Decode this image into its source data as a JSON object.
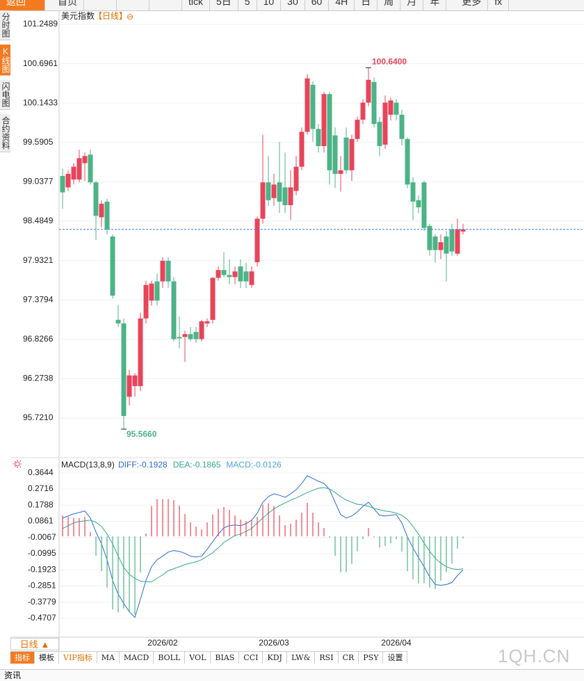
{
  "toolbar": {
    "back": "返回",
    "home": "首页",
    "items": [
      "tick",
      "5日",
      "5",
      "10",
      "30",
      "60",
      "4H",
      "日",
      "周",
      "月",
      "年"
    ],
    "more": "更多",
    "fx": "fx"
  },
  "side_tabs": [
    "分时图",
    "K线图",
    "闪电图",
    "合约资料"
  ],
  "chart_data": [
    {
      "type": "candlestick",
      "title": "美元指数",
      "period": "【日线】",
      "toggle": "⊖",
      "up_color": "#e8445a",
      "down_color": "#4cb387",
      "grid": true,
      "high_label": "100.6400",
      "low_label": "95.5660",
      "categories": [
        null,
        null,
        null,
        null,
        null,
        null,
        null,
        null,
        null,
        null,
        null,
        null,
        null,
        null,
        null,
        null,
        null,
        null,
        "2026/02",
        null,
        null,
        null,
        null,
        null,
        null,
        null,
        null,
        null,
        null,
        null,
        null,
        null,
        null,
        null,
        null,
        null,
        null,
        null,
        "2026/03",
        null,
        null,
        null,
        null,
        null,
        null,
        null,
        null,
        null,
        null,
        null,
        null,
        null,
        null,
        null,
        null,
        null,
        null,
        null,
        null,
        null,
        "2026/04",
        null,
        null,
        null,
        null,
        null,
        null,
        null,
        null,
        null,
        null,
        null,
        null
      ],
      "open": [
        99.12,
        98.96,
        99.07,
        99.07,
        99.3,
        99.42,
        99.03,
        98.54,
        98.76,
        98.27,
        97.1,
        97.05,
        96.02,
        96.17,
        96.17,
        97.12,
        97.37,
        97.64,
        97.64,
        97.93,
        97.64,
        96.86,
        96.86,
        96.9,
        96.93,
        96.83,
        97.05,
        97.1,
        97.69,
        97.8,
        97.73,
        97.7,
        97.85,
        97.78,
        97.59,
        97.91,
        98.52,
        99.03,
        98.81,
        99.03,
        98.96,
        98.71,
        98.91,
        99.25,
        99.74,
        100.4,
        99.78,
        99.54,
        100.27,
        99.69,
        99.15,
        99.66,
        99.2,
        99.64,
        99.91,
        100.15,
        100.44,
        99.88,
        99.56,
        99.98,
        100.15,
        99.98,
        99.64,
        99.03,
        98.78,
        99.03,
        98.42,
        98.27,
        98.08,
        98.27,
        98.37,
        98.03,
        98.34
      ],
      "high": [
        99.22,
        99.2,
        99.3,
        99.49,
        99.45,
        99.49,
        99.05,
        98.78,
        98.8,
        98.3,
        97.31,
        97.12,
        96.4,
        96.35,
        97.2,
        97.65,
        97.65,
        97.75,
        97.98,
        97.98,
        97.7,
        97.15,
        96.95,
        97.0,
        97.0,
        97.1,
        97.12,
        97.7,
        97.85,
        98.05,
        97.95,
        97.85,
        97.95,
        97.9,
        97.85,
        98.55,
        99.7,
        99.4,
        99.15,
        99.6,
        99.45,
        99.2,
        99.4,
        99.8,
        100.55,
        100.45,
        99.85,
        100.3,
        100.3,
        99.8,
        99.4,
        99.8,
        99.7,
        99.95,
        100.2,
        100.64,
        100.5,
        99.95,
        100.25,
        100.22,
        100.2,
        100.05,
        99.66,
        99.1,
        98.85,
        99.05,
        98.45,
        98.3,
        98.3,
        98.35,
        98.45,
        98.52,
        98.45
      ],
      "low": [
        98.66,
        98.91,
        99.0,
        99.03,
        99.05,
        99.0,
        98.22,
        98.4,
        98.3,
        97.4,
        97.0,
        95.566,
        95.9,
        96.02,
        96.1,
        97.05,
        97.3,
        97.3,
        97.55,
        97.55,
        96.8,
        96.7,
        96.51,
        96.8,
        96.78,
        96.8,
        97.0,
        97.05,
        97.65,
        97.7,
        97.6,
        97.6,
        97.55,
        97.55,
        97.55,
        97.85,
        98.45,
        98.7,
        98.7,
        98.6,
        98.6,
        98.5,
        98.85,
        99.2,
        99.7,
        99.6,
        99.45,
        99.45,
        99.0,
        98.95,
        98.9,
        99.15,
        99.05,
        99.6,
        99.85,
        100.1,
        99.8,
        99.4,
        99.5,
        99.9,
        99.9,
        99.55,
        98.95,
        98.5,
        98.6,
        98.35,
        98.0,
        97.9,
        97.95,
        97.64,
        98.0,
        98.0,
        98.3
      ],
      "close": [
        98.89,
        99.15,
        99.25,
        99.37,
        99.4,
        99.03,
        98.56,
        98.73,
        98.37,
        97.44,
        97.05,
        95.75,
        96.32,
        96.32,
        97.12,
        97.59,
        97.61,
        97.37,
        97.93,
        97.64,
        96.83,
        96.84,
        96.9,
        96.83,
        96.83,
        97.08,
        97.08,
        97.69,
        97.8,
        97.73,
        97.7,
        97.78,
        97.64,
        97.64,
        97.78,
        98.52,
        99.03,
        98.78,
        99.0,
        98.76,
        98.71,
        98.96,
        99.25,
        99.74,
        100.49,
        99.78,
        99.54,
        100.27,
        99.2,
        99.15,
        99.2,
        99.2,
        99.64,
        99.91,
        100.15,
        100.47,
        99.85,
        99.54,
        100.15,
        100.18,
        99.98,
        99.64,
        99.0,
        98.76,
        98.68,
        98.39,
        98.08,
        98.08,
        98.19,
        98.03,
        98.06,
        98.37,
        98.37
      ],
      "ylim": [
        95.165,
        101.444
      ],
      "yticks": [
        101.2489,
        100.6961,
        100.1433,
        99.5905,
        99.0377,
        98.4849,
        97.9321,
        97.3794,
        96.8266,
        96.2738,
        {
          "value": 95.721,
          "label": "95.7210"
        }
      ]
    },
    {
      "type": "macd",
      "title": "MACD(13,8,9)",
      "grid": true,
      "ylim": [
        -0.5749,
        0.4434
      ],
      "yticks": [
        0.3644,
        0.2716,
        0.1788,
        0.0861,
        -0.0067,
        -0.0995,
        -0.1923,
        -0.2851,
        -0.3779,
        -0.4707
      ],
      "series": [
        {
          "name": "DIFF:-0.1928",
          "color": "#2a6ad8",
          "values": [
            0.105,
            0.117,
            0.129,
            0.137,
            0.145,
            0.105,
            0.025,
            -0.043,
            -0.134,
            -0.253,
            -0.333,
            -0.385,
            -0.433,
            -0.465,
            -0.361,
            -0.253,
            -0.174,
            -0.134,
            -0.114,
            -0.09,
            -0.082,
            -0.086,
            -0.098,
            -0.114,
            -0.118,
            -0.114,
            -0.074,
            -0.031,
            0.013,
            0.049,
            0.061,
            0.065,
            0.061,
            0.073,
            0.093,
            0.133,
            0.196,
            0.228,
            0.244,
            0.236,
            0.224,
            0.244,
            0.268,
            0.304,
            0.348,
            0.332,
            0.316,
            0.304,
            0.268,
            0.196,
            0.125,
            0.105,
            0.117,
            0.141,
            0.172,
            0.196,
            0.157,
            0.121,
            0.117,
            0.121,
            0.125,
            0.077,
            -0.003,
            -0.066,
            -0.122,
            -0.174,
            -0.233,
            -0.277,
            -0.281,
            -0.277,
            -0.265,
            -0.225,
            -0.1928
          ]
        },
        {
          "name": "DEA:-0.1865",
          "color": "#31a98a",
          "values": [
            0.045,
            0.061,
            0.077,
            0.085,
            0.089,
            0.093,
            0.081,
            0.057,
            0.013,
            -0.043,
            -0.114,
            -0.178,
            -0.218,
            -0.241,
            -0.257,
            -0.261,
            -0.261,
            -0.241,
            -0.221,
            -0.197,
            -0.186,
            -0.174,
            -0.162,
            -0.154,
            -0.146,
            -0.134,
            -0.114,
            -0.094,
            -0.066,
            -0.035,
            -0.015,
            0.005,
            0.013,
            0.029,
            0.045,
            0.077,
            0.105,
            0.133,
            0.157,
            0.176,
            0.192,
            0.208,
            0.22,
            0.236,
            0.252,
            0.264,
            0.276,
            0.28,
            0.272,
            0.252,
            0.228,
            0.208,
            0.196,
            0.184,
            0.18,
            0.172,
            0.16,
            0.153,
            0.145,
            0.141,
            0.133,
            0.121,
            0.097,
            0.057,
            0.013,
            -0.039,
            -0.086,
            -0.126,
            -0.154,
            -0.174,
            -0.186,
            -0.19,
            -0.1865
          ]
        },
        {
          "name": "MACD:-0.0126",
          "type": "bar",
          "color": "#4aa8d8",
          "up_color": "#e8445a",
          "down_color": "#4cb387",
          "values": [
            0.12,
            0.112,
            0.104,
            0.104,
            0.112,
            0.024,
            -0.112,
            -0.2,
            -0.294,
            -0.42,
            -0.438,
            -0.414,
            -0.43,
            -0.448,
            -0.208,
            0.016,
            0.174,
            0.214,
            0.214,
            0.214,
            0.208,
            0.176,
            0.128,
            0.08,
            0.056,
            0.04,
            0.08,
            0.126,
            0.158,
            0.168,
            0.152,
            0.12,
            0.096,
            0.088,
            0.096,
            0.112,
            0.182,
            0.19,
            0.174,
            0.12,
            0.064,
            0.072,
            0.096,
            0.136,
            0.192,
            0.136,
            0.08,
            0.048,
            -0.008,
            -0.112,
            -0.206,
            -0.206,
            -0.158,
            -0.086,
            -0.016,
            0.048,
            -0.006,
            -0.064,
            -0.056,
            -0.04,
            -0.016,
            -0.088,
            -0.2,
            -0.246,
            -0.27,
            -0.27,
            -0.294,
            -0.302,
            -0.254,
            -0.206,
            -0.158,
            -0.07,
            -0.0126
          ]
        }
      ]
    }
  ],
  "bottom": {
    "period": "日线 ▲",
    "tabs": [
      "指标",
      "模板",
      "VIP指标",
      "MA",
      "MACD",
      "BOLL",
      "VOL",
      "BIAS",
      "CCI",
      "KDJ",
      "LW&",
      "RSI",
      "CR",
      "PSY",
      "设置"
    ],
    "news": "资讯",
    "watermark": "1QH.CN"
  }
}
